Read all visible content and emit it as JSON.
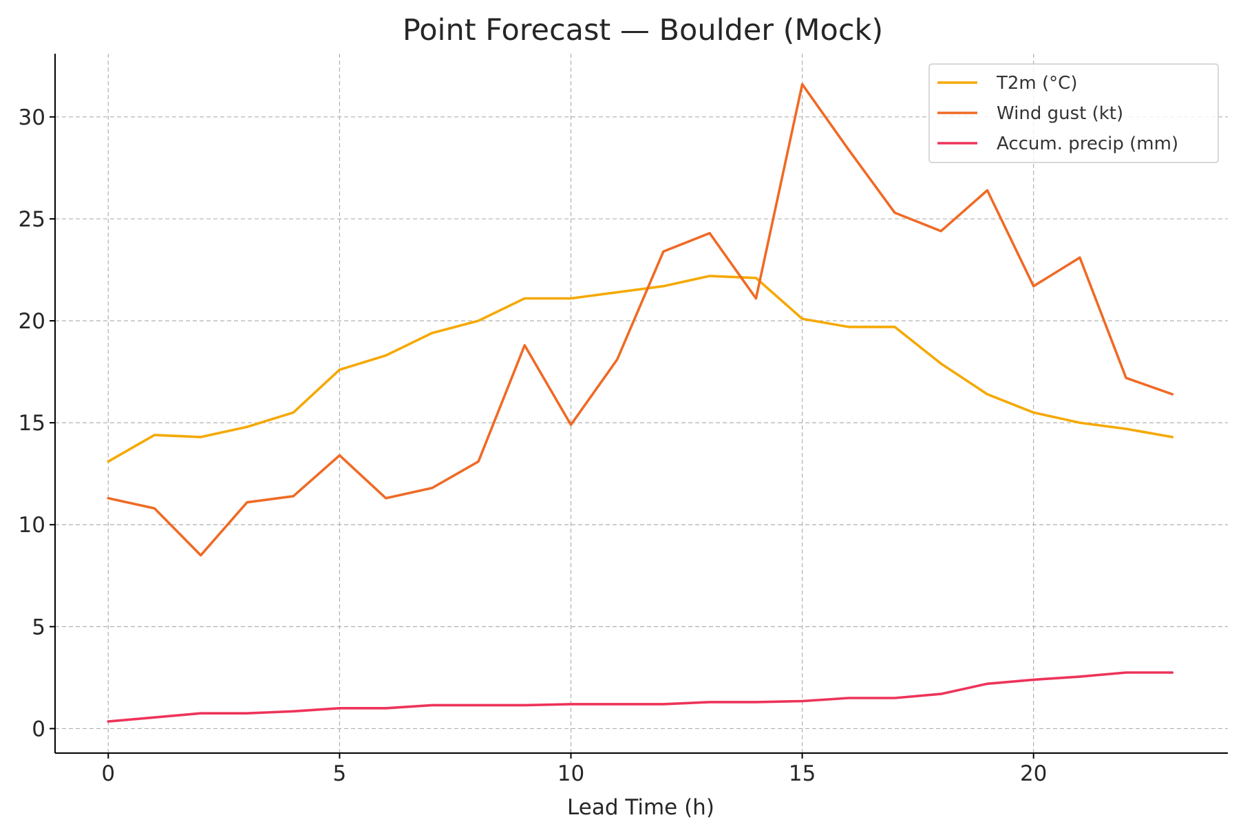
{
  "chart_data": {
    "type": "line",
    "title": "Point Forecast — Boulder (Mock)",
    "xlabel": "Lead Time (h)",
    "ylabel": "",
    "x": [
      0,
      1,
      2,
      3,
      4,
      5,
      6,
      7,
      8,
      9,
      10,
      11,
      12,
      13,
      14,
      15,
      16,
      17,
      18,
      19,
      20,
      21,
      22,
      23
    ],
    "xlim": [
      -1.15,
      24.2
    ],
    "ylim": [
      -1.2,
      33.1
    ],
    "xticks": [
      0,
      5,
      10,
      15,
      20
    ],
    "yticks": [
      0,
      5,
      10,
      15,
      20,
      25,
      30
    ],
    "grid": true,
    "legend_position": "top-right",
    "series": [
      {
        "name": "T2m (°C)",
        "color": "#f5a800",
        "values": [
          13.1,
          14.4,
          14.3,
          14.8,
          15.5,
          17.6,
          18.3,
          19.4,
          20.0,
          21.1,
          21.1,
          21.4,
          21.7,
          22.2,
          22.1,
          20.1,
          19.7,
          19.7,
          17.9,
          16.4,
          15.5,
          15.0,
          14.7,
          14.3
        ]
      },
      {
        "name": "Wind gust (kt)",
        "color": "#ef6a25",
        "values": [
          11.3,
          10.8,
          8.5,
          11.1,
          11.4,
          13.4,
          11.3,
          11.8,
          13.1,
          18.8,
          14.9,
          18.1,
          23.4,
          24.3,
          21.1,
          31.6,
          28.4,
          25.3,
          24.4,
          26.4,
          21.7,
          23.1,
          17.2,
          16.4
        ]
      },
      {
        "name": "Accum. precip (mm)",
        "color": "#ee3359",
        "values": [
          0.35,
          0.55,
          0.75,
          0.75,
          0.85,
          1.0,
          1.0,
          1.15,
          1.15,
          1.15,
          1.2,
          1.2,
          1.2,
          1.3,
          1.3,
          1.35,
          1.5,
          1.5,
          1.7,
          2.2,
          2.4,
          2.55,
          2.75,
          2.75
        ]
      }
    ]
  }
}
